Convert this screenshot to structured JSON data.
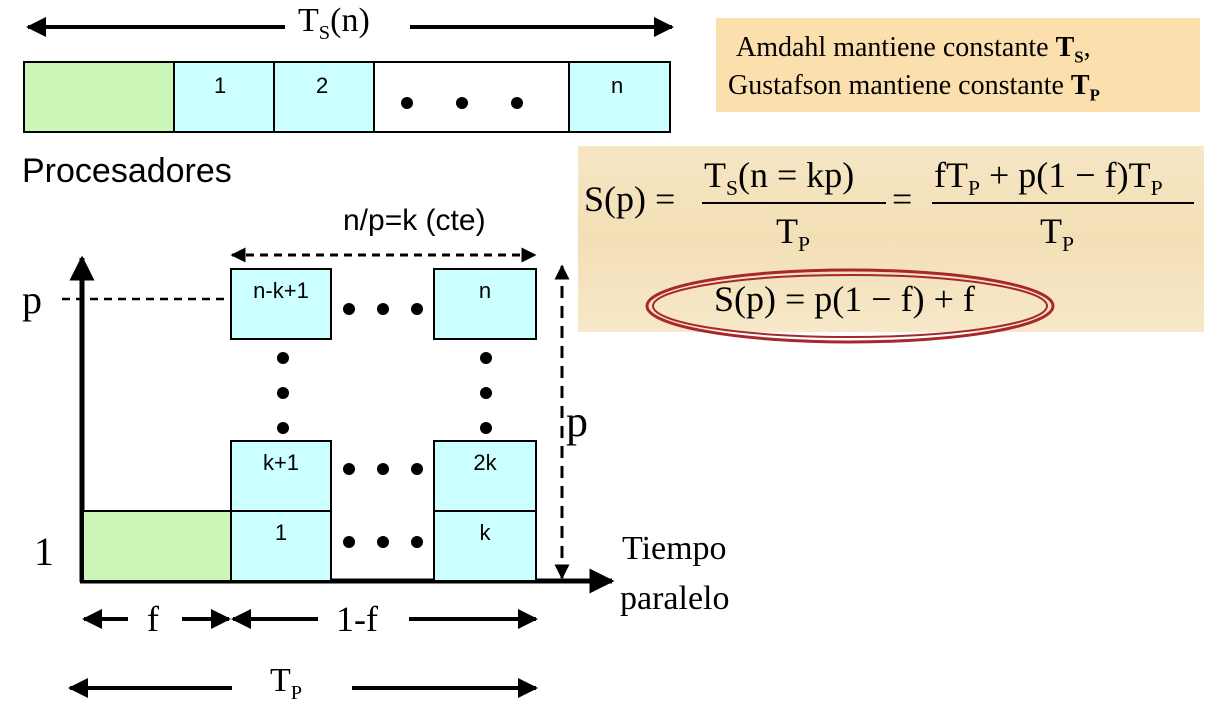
{
  "top": {
    "ts_label": "T",
    "ts_sub": "S",
    "ts_arg": "(n)",
    "cells": [
      "1",
      "2",
      "n"
    ],
    "dots": "• • •"
  },
  "note": {
    "line1": "Amdahl mantiene constante ",
    "line1_bold": "T",
    "line1_sub": "S",
    "line1_end": ",",
    "line2": "Gustafson mantiene constante ",
    "line2_bold": "T",
    "line2_sub": "P"
  },
  "formula": {
    "lhs": "S(p) =",
    "frac1_num": "T",
    "frac1_num_sub": "S",
    "frac1_num_arg": "(n = kp)",
    "frac1_den": "T",
    "frac1_den_sub": "P",
    "eq": "=",
    "frac2_num": "fT",
    "frac2_num_sub1": "P",
    "frac2_num_mid": " + p(1 − f)T",
    "frac2_num_sub2": "P",
    "frac2_den": "T",
    "frac2_den_sub": "P",
    "result": "S(p) = p(1 − f) + f"
  },
  "diagram": {
    "procesadores": "Procesadores",
    "np_label": "n/p=k (cte)",
    "p_axis": "p",
    "one_axis": "1",
    "p_height": "p",
    "grid_top": [
      "n-k+1",
      "n"
    ],
    "grid_mid": [
      "k+1",
      "2k"
    ],
    "grid_bot": [
      "1",
      "k"
    ],
    "tiempo": "Tiempo",
    "paralelo": "paralelo",
    "f_label": "f",
    "one_minus_f": "1-f",
    "tp_label": "T",
    "tp_sub": "P"
  },
  "colors": {
    "green": "#ccf5b8",
    "cyan": "#ccffff",
    "note_bg": "#fbe0ad",
    "ellipse": "#a8272c"
  }
}
